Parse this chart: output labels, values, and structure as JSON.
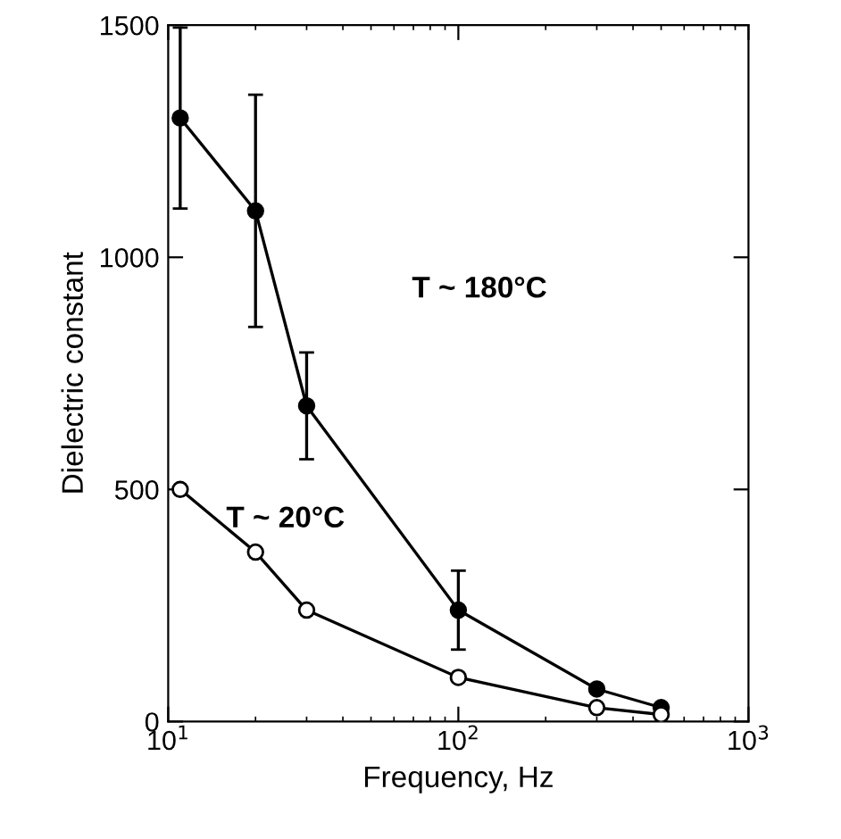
{
  "chart_data": {
    "type": "line",
    "xlabel": "Frequency, Hz",
    "ylabel": "Dielectric constant",
    "log": "x",
    "xlim": [
      10,
      1000
    ],
    "ylim": [
      0,
      1500
    ],
    "xticks": [
      {
        "value": 10,
        "label": "10$^{1}$"
      },
      {
        "value": 100,
        "label": "10$^{2}$"
      },
      {
        "value": 1000,
        "label": "10$^{3}$"
      }
    ],
    "yticks": [
      0,
      500,
      1000,
      1500
    ],
    "grid": false,
    "marker": "circle",
    "line_style": "solid",
    "series": [
      {
        "color": "#000000",
        "x": [
          11,
          20,
          30,
          100,
          300,
          500
        ],
        "values": [
          1300,
          1100,
          680,
          240,
          70,
          30
        ],
        "errors": [
          195,
          250,
          115,
          85,
          null,
          null
        ]
      },
      {
        "color": "#ffffff",
        "x": [
          11,
          20,
          30,
          100,
          300,
          500
        ],
        "values": [
          500,
          365,
          240,
          95,
          30,
          15
        ]
      }
    ],
    "annotations": [
      "T ~ 180°C",
      "T ~ 20°C"
    ]
  }
}
